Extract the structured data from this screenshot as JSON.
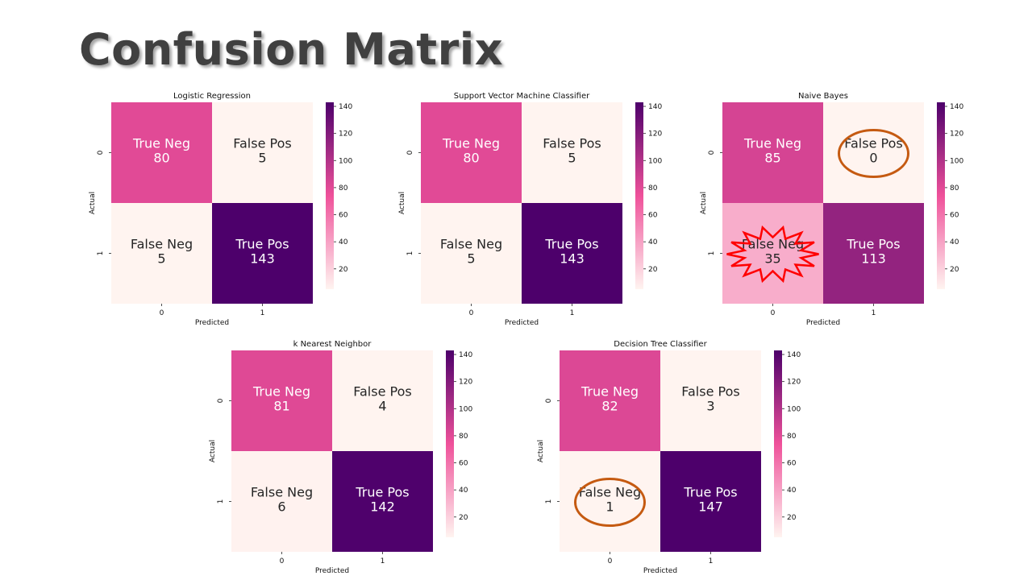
{
  "page": {
    "title": "Confusion Matrix"
  },
  "colors": {
    "low": "#fff4f0",
    "mid": "#ef519a",
    "high": "#4d006b",
    "text_dark": "#262626",
    "text_light": "#ffffff",
    "annotation_oval": "#c55a11",
    "annotation_burst": "#ff0000"
  },
  "colorbar": {
    "ticks": [
      "140",
      "120",
      "100",
      "80",
      "60",
      "40",
      "20"
    ],
    "tick_values": [
      140,
      120,
      100,
      80,
      60,
      40,
      20
    ],
    "vmin": 5,
    "vmax": 143
  },
  "chart_data": [
    {
      "type": "heatmap",
      "title": "Logistic Regression",
      "xlabel": "Predicted",
      "ylabel": "Actual",
      "x_ticks": [
        "0",
        "1"
      ],
      "y_ticks": [
        "0",
        "1"
      ],
      "cells": [
        [
          {
            "label": "True Neg",
            "value": 80
          },
          {
            "label": "False Pos",
            "value": 5
          }
        ],
        [
          {
            "label": "False Neg",
            "value": 5
          },
          {
            "label": "True Pos",
            "value": 143
          }
        ]
      ],
      "highlights": []
    },
    {
      "type": "heatmap",
      "title": "Support Vector Machine Classifier",
      "xlabel": "Predicted",
      "ylabel": "Actual",
      "x_ticks": [
        "0",
        "1"
      ],
      "y_ticks": [
        "0",
        "1"
      ],
      "cells": [
        [
          {
            "label": "True Neg",
            "value": 80
          },
          {
            "label": "False Pos",
            "value": 5
          }
        ],
        [
          {
            "label": "False Neg",
            "value": 5
          },
          {
            "label": "True Pos",
            "value": 143
          }
        ]
      ],
      "highlights": []
    },
    {
      "type": "heatmap",
      "title": "Naive Bayes",
      "xlabel": "Predicted",
      "ylabel": "Actual",
      "x_ticks": [
        "0",
        "1"
      ],
      "y_ticks": [
        "0",
        "1"
      ],
      "cells": [
        [
          {
            "label": "True Neg",
            "value": 85
          },
          {
            "label": "False Pos",
            "value": 0
          }
        ],
        [
          {
            "label": "False Neg",
            "value": 35
          },
          {
            "label": "True Pos",
            "value": 113
          }
        ]
      ],
      "highlights": [
        {
          "cell": "0-1",
          "shape": "oval"
        },
        {
          "cell": "1-0",
          "shape": "burst"
        }
      ]
    },
    {
      "type": "heatmap",
      "title": "k Nearest Neighbor",
      "xlabel": "Predicted",
      "ylabel": "Actual",
      "x_ticks": [
        "0",
        "1"
      ],
      "y_ticks": [
        "0",
        "1"
      ],
      "cells": [
        [
          {
            "label": "True Neg",
            "value": 81
          },
          {
            "label": "False Pos",
            "value": 4
          }
        ],
        [
          {
            "label": "False Neg",
            "value": 6
          },
          {
            "label": "True Pos",
            "value": 142
          }
        ]
      ],
      "highlights": []
    },
    {
      "type": "heatmap",
      "title": "Decision Tree Classifier",
      "xlabel": "Predicted",
      "ylabel": "Actual",
      "x_ticks": [
        "0",
        "1"
      ],
      "y_ticks": [
        "0",
        "1"
      ],
      "cells": [
        [
          {
            "label": "True Neg",
            "value": 82
          },
          {
            "label": "False Pos",
            "value": 3
          }
        ],
        [
          {
            "label": "False Neg",
            "value": 1
          },
          {
            "label": "True Pos",
            "value": 147
          }
        ]
      ],
      "highlights": [
        {
          "cell": "1-0",
          "shape": "oval"
        }
      ]
    }
  ]
}
